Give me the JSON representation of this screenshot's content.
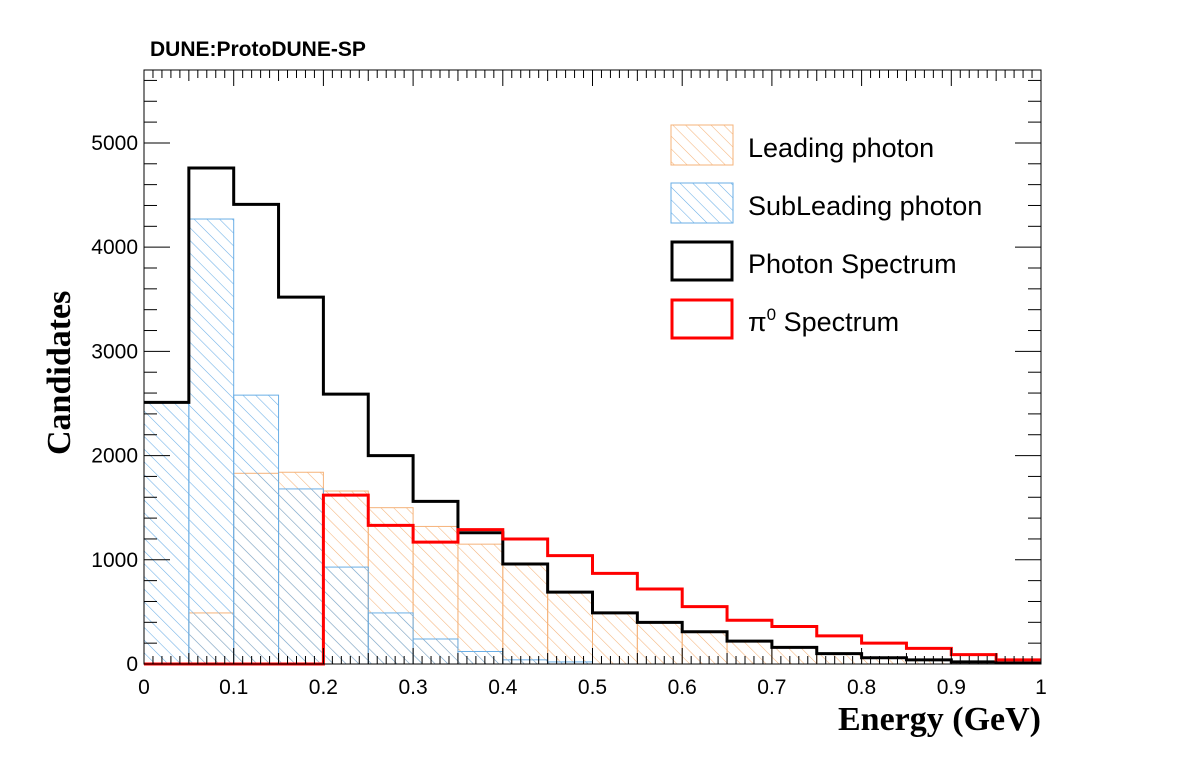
{
  "chart_data": {
    "type": "histogram",
    "title": "DUNE:ProtoDUNE-SP",
    "xlabel": "Energy (GeV)",
    "ylabel": "Candidates",
    "xlim": [
      0,
      1
    ],
    "ylim": [
      0,
      5700
    ],
    "xticks": [
      0,
      0.1,
      0.2,
      0.3,
      0.4,
      0.5,
      0.6,
      0.7,
      0.8,
      0.9,
      1
    ],
    "xtick_labels": [
      "0",
      "0.1",
      "0.2",
      "0.3",
      "0.4",
      "0.5",
      "0.6",
      "0.7",
      "0.8",
      "0.9",
      "1"
    ],
    "yticks": [
      0,
      1000,
      2000,
      3000,
      4000,
      5000
    ],
    "ytick_labels": [
      "0",
      "1000",
      "2000",
      "3000",
      "4000",
      "5000"
    ],
    "grid": false,
    "legend_position": "top-right",
    "bin_edges": [
      0,
      0.05,
      0.1,
      0.15,
      0.2,
      0.25,
      0.3,
      0.35,
      0.4,
      0.45,
      0.5,
      0.55,
      0.6,
      0.65,
      0.7,
      0.75,
      0.8,
      0.85,
      0.9,
      0.95,
      1.0
    ],
    "series": [
      {
        "name": "Leading photon",
        "style": "hatched",
        "color": "#f5b37a",
        "values": [
          0,
          490,
          1830,
          1840,
          1660,
          1500,
          1320,
          1150,
          960,
          690,
          490,
          400,
          310,
          220,
          160,
          100,
          60,
          40,
          20,
          10
        ]
      },
      {
        "name": "SubLeading photon",
        "style": "hatched",
        "color": "#6aaee6",
        "values": [
          2510,
          4270,
          2580,
          1680,
          930,
          490,
          240,
          120,
          40,
          20,
          0,
          0,
          0,
          0,
          0,
          0,
          0,
          0,
          0,
          0
        ]
      },
      {
        "name": "Photon Spectrum",
        "style": "line",
        "color": "#000000",
        "values": [
          2510,
          4760,
          4410,
          3520,
          2590,
          2000,
          1560,
          1260,
          960,
          690,
          490,
          400,
          310,
          220,
          160,
          100,
          60,
          40,
          20,
          10
        ]
      },
      {
        "name_main": "π",
        "name_sup": "0",
        "name_rest": " Spectrum",
        "style": "line",
        "color": "#ff0000",
        "values": [
          0,
          0,
          0,
          0,
          1620,
          1330,
          1170,
          1290,
          1200,
          1040,
          870,
          720,
          550,
          420,
          360,
          270,
          200,
          150,
          90,
          40
        ]
      }
    ]
  }
}
